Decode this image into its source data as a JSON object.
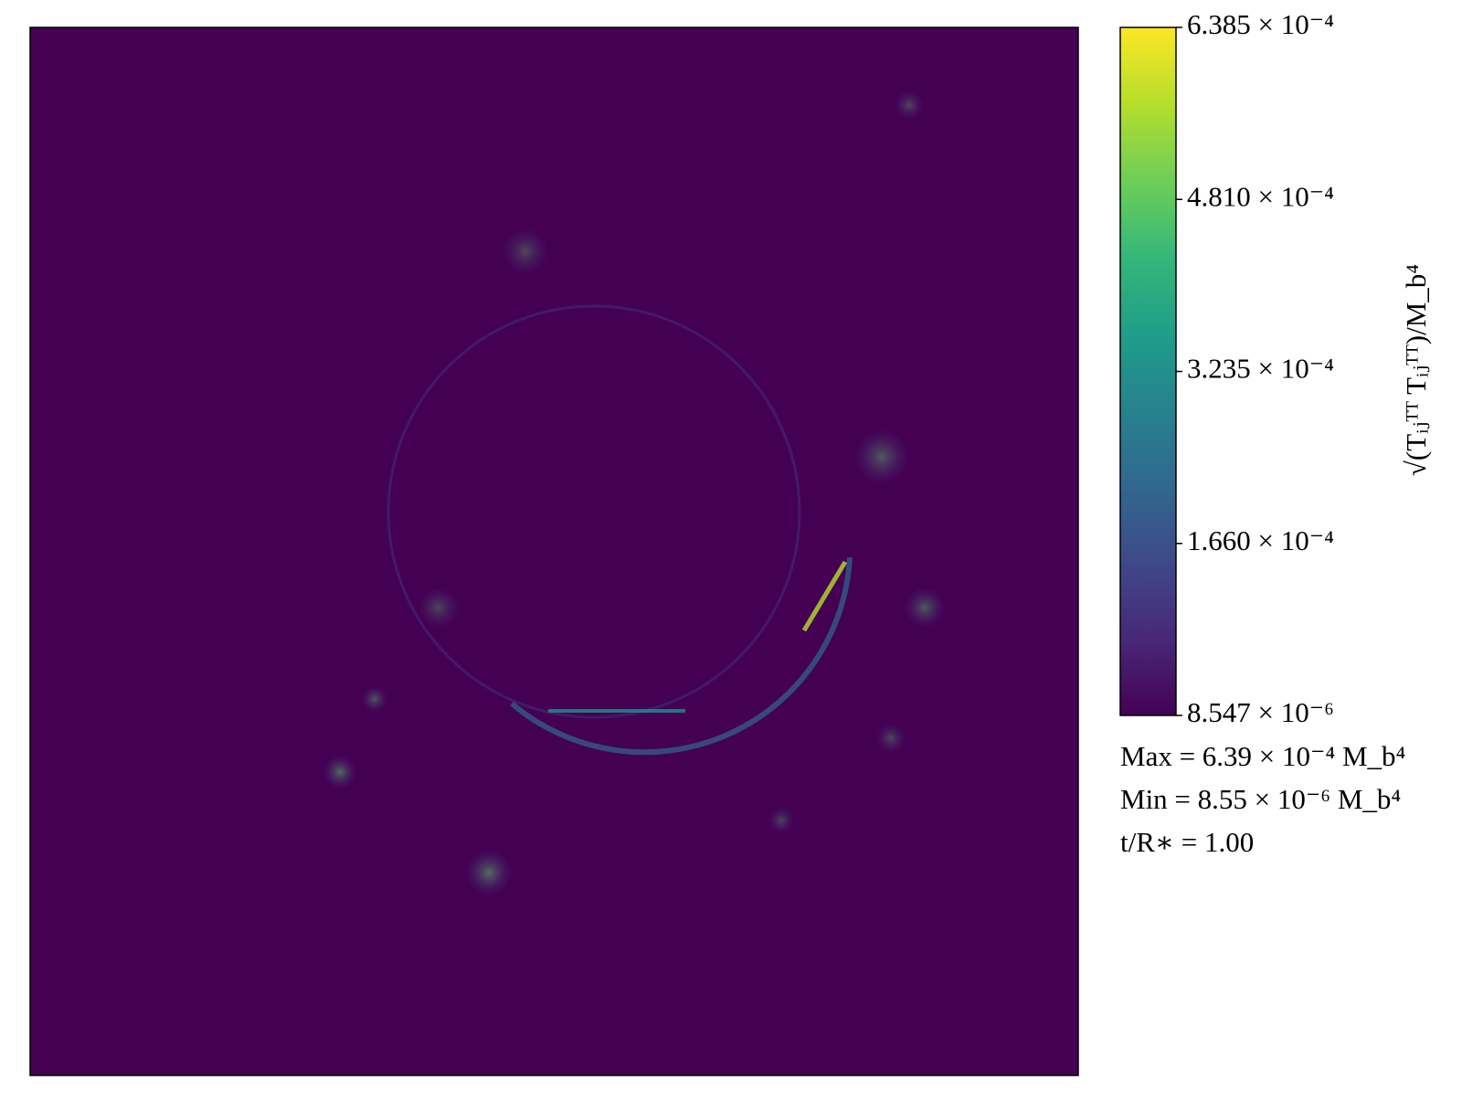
{
  "chart_data": {
    "type": "heatmap",
    "colormap": "viridis",
    "clim": [
      8.547e-06,
      0.0006385
    ],
    "cticks": [
      {
        "value": 8.547e-06,
        "label": "8.547 × 10⁻⁶"
      },
      {
        "value": 0.000166,
        "label": "1.660 × 10⁻⁴"
      },
      {
        "value": 0.0003235,
        "label": "3.235 × 10⁻⁴"
      },
      {
        "value": 0.000481,
        "label": "4.810 × 10⁻⁴"
      },
      {
        "value": 0.0006385,
        "label": "6.385 × 10⁻⁴"
      }
    ],
    "colorbar_label": "√(Tᵢⱼᵀᵀ Tᵢⱼᵀᵀ)/M_b⁴",
    "annotations": [
      "Max = 6.39 × 10⁻⁴ M_b⁴",
      "Min = 8.55 × 10⁻⁶ M_b⁴",
      "t/R∗ = 1.00"
    ]
  }
}
